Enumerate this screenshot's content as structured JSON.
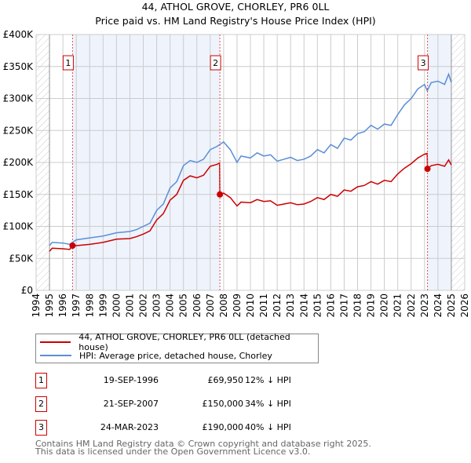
{
  "chart_data": {
    "type": "line",
    "title": "44, ATHOL GROVE, CHORLEY, PR6 0LL",
    "subtitle": "Price paid vs. HM Land Registry's House Price Index (HPI)",
    "xlim": [
      1994,
      2026
    ],
    "ylim": [
      0,
      400000
    ],
    "x_ticks": [
      "1994",
      "1995",
      "1996",
      "1997",
      "1998",
      "1999",
      "2000",
      "2001",
      "2002",
      "2003",
      "2004",
      "2005",
      "2006",
      "2007",
      "2008",
      "2009",
      "2010",
      "2011",
      "2012",
      "2013",
      "2014",
      "2015",
      "2016",
      "2017",
      "2018",
      "2019",
      "2020",
      "2021",
      "2022",
      "2023",
      "2024",
      "2025",
      "2026"
    ],
    "y_ticks": [
      "£0",
      "£50K",
      "£100K",
      "£150K",
      "£200K",
      "£250K",
      "£300K",
      "£350K",
      "£400K"
    ],
    "series": [
      {
        "name": "HPI: Average price, detached house, Chorley",
        "color": "#5b8fd6",
        "x": [
          1995,
          1995.2,
          1996,
          1996.5,
          1997,
          1998,
          1999,
          2000,
          2001,
          2001.5,
          2002,
          2002.5,
          2003,
          2003.5,
          2004,
          2004.5,
          2005,
          2005.5,
          2006,
          2006.5,
          2007,
          2007.5,
          2008,
          2008.5,
          2009,
          2009.3,
          2010,
          2010.5,
          2011,
          2011.5,
          2012,
          2012.5,
          2013,
          2013.5,
          2014,
          2014.5,
          2015,
          2015.5,
          2016,
          2016.5,
          2017,
          2017.5,
          2018,
          2018.5,
          2019,
          2019.5,
          2020,
          2020.5,
          2021,
          2021.5,
          2022,
          2022.5,
          2023,
          2023.2,
          2023.5,
          2024,
          2024.5,
          2024.8,
          2025
        ],
        "y": [
          70,
          75,
          74,
          72,
          79,
          82,
          85,
          90,
          92,
          95,
          100,
          105,
          125,
          135,
          160,
          170,
          195,
          203,
          200,
          205,
          220,
          225,
          232,
          220,
          200,
          210,
          207,
          215,
          210,
          212,
          202,
          205,
          208,
          203,
          205,
          210,
          220,
          215,
          228,
          222,
          238,
          235,
          245,
          248,
          258,
          252,
          260,
          258,
          275,
          290,
          300,
          315,
          322,
          312,
          325,
          327,
          322,
          338,
          325
        ]
      },
      {
        "name": "44, ATHOL GROVE, CHORLEY, PR6 0LL (detached house)",
        "color": "#cc0000",
        "x": [
          1995,
          1995.2,
          1996,
          1996.5,
          1996.72,
          1997,
          1998,
          1999,
          2000,
          2001,
          2001.5,
          2002,
          2002.5,
          2003,
          2003.5,
          2004,
          2004.5,
          2005,
          2005.5,
          2006,
          2006.5,
          2007,
          2007.5,
          2007.7,
          2007.72,
          2008,
          2008.5,
          2009,
          2009.3,
          2010,
          2010.5,
          2011,
          2011.5,
          2012,
          2012.5,
          2013,
          2013.5,
          2014,
          2014.5,
          2015,
          2015.5,
          2016,
          2016.5,
          2017,
          2017.5,
          2018,
          2018.5,
          2019,
          2019.5,
          2020,
          2020.5,
          2021,
          2021.5,
          2022,
          2022.5,
          2023,
          2023.2,
          2023.22,
          2023.5,
          2024,
          2024.5,
          2024.8,
          2025
        ],
        "y": [
          61,
          66,
          65,
          64,
          69.95,
          70,
          72,
          75,
          80,
          81,
          84,
          88,
          93,
          110,
          120,
          141,
          150,
          172,
          179,
          176,
          180,
          194,
          197,
          199,
          150,
          152,
          145,
          132,
          138,
          137,
          142,
          139,
          140,
          133,
          135,
          137,
          134,
          135,
          139,
          145,
          142,
          150,
          147,
          157,
          155,
          162,
          164,
          170,
          166,
          172,
          170,
          182,
          191,
          198,
          207,
          213,
          214,
          190,
          195,
          197,
          194,
          204,
          196
        ]
      }
    ],
    "y_units": "thousands GBP",
    "sales": [
      {
        "label": "1",
        "x": 1996.72,
        "date": "19-SEP-1996",
        "price": "£69,950",
        "value": 69.95,
        "hpi": "12% ↓ HPI"
      },
      {
        "label": "2",
        "x": 2007.72,
        "date": "21-SEP-2007",
        "price": "£150,000",
        "value": 150,
        "hpi": "34% ↓ HPI"
      },
      {
        "label": "3",
        "x": 2023.22,
        "date": "24-MAR-2023",
        "price": "£190,000",
        "value": 190,
        "hpi": "40% ↓ HPI"
      }
    ],
    "data_range": [
      1995,
      2025
    ]
  },
  "legend": {
    "red": "44, ATHOL GROVE, CHORLEY, PR6 0LL (detached house)",
    "blue": "HPI: Average price, detached house, Chorley"
  },
  "footer": {
    "line1": "Contains HM Land Registry data © Crown copyright and database right 2025.",
    "line2": "This data is licensed under the Open Government Licence v3.0."
  }
}
